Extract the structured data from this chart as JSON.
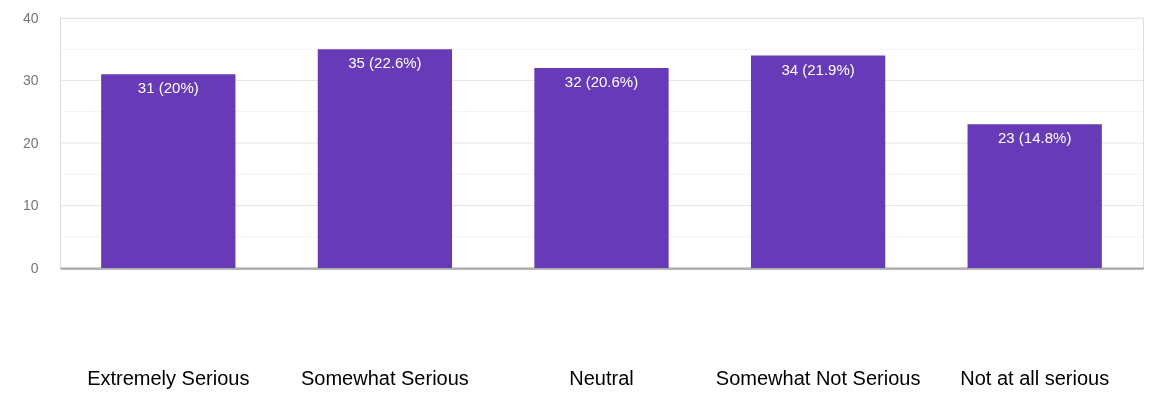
{
  "chart_data": {
    "type": "bar",
    "categories": [
      "Extremely Serious",
      "Somewhat Serious",
      "Neutral",
      "Somewhat Not Serious",
      "Not at all serious"
    ],
    "values": [
      31,
      35,
      32,
      34,
      23
    ],
    "value_labels": [
      "31 (20%)",
      "35 (22.6%)",
      "32 (20.6%)",
      "34 (21.9%)",
      "23 (14.8%)"
    ],
    "color": "#673ab7",
    "ylim": [
      0,
      40
    ],
    "yticks": [
      0,
      {
        "value": 5,
        "label": null
      },
      10,
      {
        "value": 15,
        "label": null
      },
      20,
      {
        "value": 25,
        "label": null
      },
      30,
      {
        "value": 35,
        "label": null
      },
      40
    ],
    "grid": "y"
  }
}
